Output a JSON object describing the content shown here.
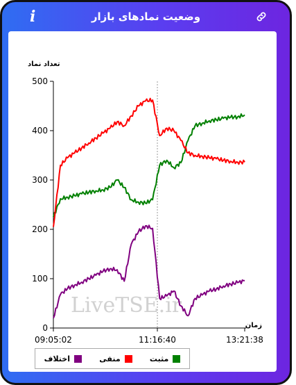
{
  "header": {
    "title": "وضعیت نمادهای بازار",
    "info_icon": "i"
  },
  "watermark": "LiveTSE.ir",
  "chart_data": {
    "type": "line",
    "ylabel": "تعداد نماد",
    "xlabel": "زمان",
    "ylim": [
      0,
      500
    ],
    "yticks": [
      "0",
      "100",
      "200",
      "300",
      "400",
      "500"
    ],
    "xticks": [
      "09:05:02",
      "11:16:40",
      "13:21:38"
    ],
    "colors": {
      "mosbat": "#008000",
      "manfi": "#ff0000",
      "ekhtelaf": "#800080"
    },
    "x": [
      "09:05",
      "09:15",
      "09:25",
      "09:35",
      "09:45",
      "09:55",
      "10:05",
      "10:15",
      "10:25",
      "10:35",
      "10:45",
      "10:55",
      "11:05",
      "11:15",
      "11:20",
      "11:25",
      "11:35",
      "11:45",
      "11:55",
      "12:05",
      "12:15",
      "12:25",
      "12:35",
      "12:45",
      "12:55",
      "13:05",
      "13:15",
      "13:21"
    ],
    "series": [
      {
        "name": "مثبت",
        "color": "#008000",
        "values": [
          225,
          262,
          265,
          268,
          272,
          275,
          278,
          280,
          285,
          300,
          285,
          260,
          255,
          253,
          260,
          330,
          340,
          325,
          335,
          380,
          410,
          415,
          420,
          422,
          425,
          427,
          428,
          432
        ]
      },
      {
        "name": "منفی",
        "color": "#ff0000",
        "values": [
          205,
          330,
          345,
          355,
          365,
          375,
          385,
          395,
          405,
          418,
          410,
          430,
          450,
          460,
          462,
          390,
          405,
          400,
          380,
          355,
          350,
          348,
          345,
          343,
          340,
          338,
          336,
          336
        ]
      },
      {
        "name": "اختلاف",
        "color": "#800080",
        "values": [
          20,
          68,
          80,
          87,
          93,
          100,
          107,
          115,
          120,
          118,
          95,
          170,
          195,
          207,
          202,
          60,
          65,
          75,
          45,
          25,
          60,
          67,
          75,
          79,
          85,
          89,
          92,
          96
        ]
      }
    ]
  }
}
